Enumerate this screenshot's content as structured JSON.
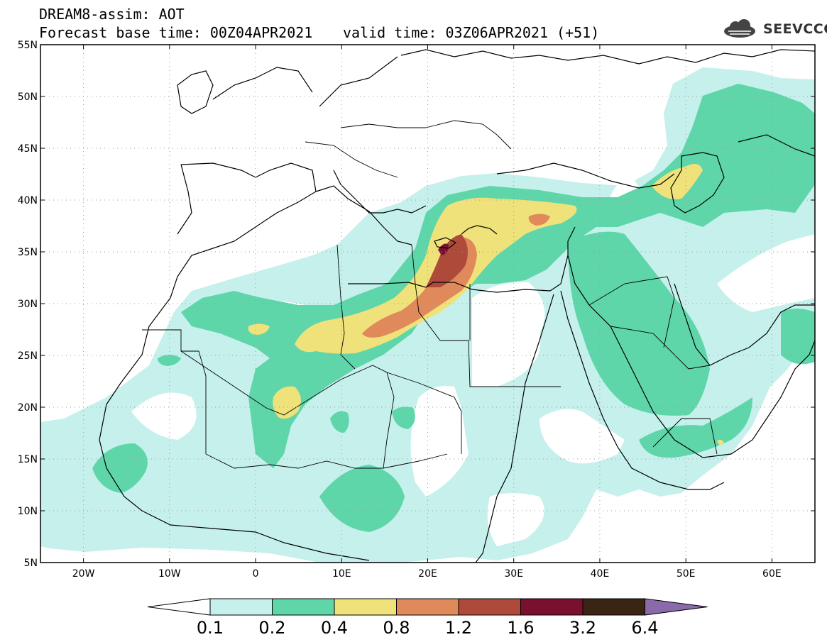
{
  "header": {
    "title_line1": "DREAM8-assim: AOT",
    "base_time": "Forecast base time: 00Z04APR2021",
    "valid_time": "valid time: 03Z06APR2021 (+51)",
    "logo_text": "SEEVCCC",
    "logo_icon": "cloud-icon"
  },
  "map": {
    "projection": "lat-lon",
    "lon_range": [
      -25,
      65
    ],
    "lat_range": [
      5,
      55
    ],
    "lat_ticks": [
      {
        "value": 55,
        "label": "55N"
      },
      {
        "value": 50,
        "label": "50N"
      },
      {
        "value": 45,
        "label": "45N"
      },
      {
        "value": 40,
        "label": "40N"
      },
      {
        "value": 35,
        "label": "35N"
      },
      {
        "value": 30,
        "label": "30N"
      },
      {
        "value": 25,
        "label": "25N"
      },
      {
        "value": 20,
        "label": "20N"
      },
      {
        "value": 15,
        "label": "15N"
      },
      {
        "value": 10,
        "label": "10N"
      },
      {
        "value": 5,
        "label": "5N"
      }
    ],
    "lon_ticks": [
      {
        "value": -20,
        "label": "20W"
      },
      {
        "value": -10,
        "label": "10W"
      },
      {
        "value": 0,
        "label": "0"
      },
      {
        "value": 10,
        "label": "10E"
      },
      {
        "value": 20,
        "label": "20E"
      },
      {
        "value": 30,
        "label": "30E"
      },
      {
        "value": 40,
        "label": "40E"
      },
      {
        "value": 50,
        "label": "50E"
      },
      {
        "value": 60,
        "label": "60E"
      }
    ],
    "grid": true
  },
  "legend": {
    "levels": [
      "0.1",
      "0.2",
      "0.4",
      "0.8",
      "1.2",
      "1.6",
      "3.2",
      "6.4"
    ],
    "colors": [
      "#c6f0ec",
      "#5ed6aa",
      "#f0e27a",
      "#e08a5c",
      "#ad4a3a",
      "#7a1030",
      "#3a2414",
      "#8a6aa8"
    ],
    "under_color": "#ffffff",
    "over_color": "#8a6aa8"
  }
}
